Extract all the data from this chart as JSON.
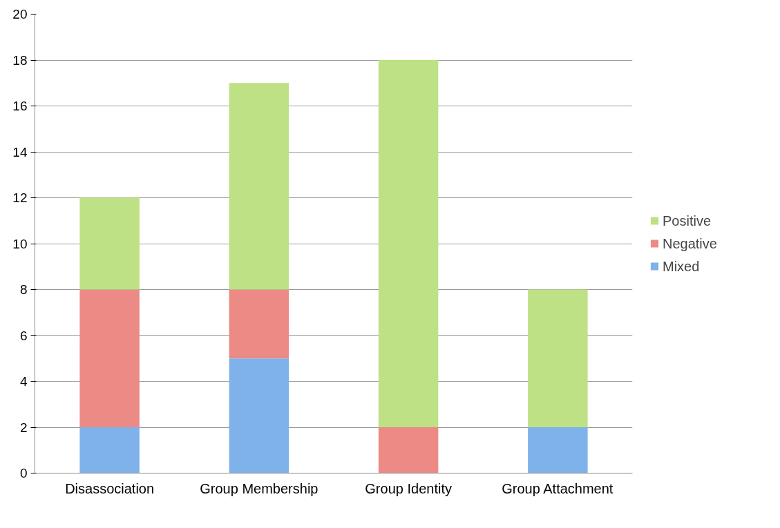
{
  "chart_data": {
    "type": "bar",
    "stacked": true,
    "categories": [
      "Disassociation",
      "Group Membership",
      "Group Identity",
      "Group Attachment"
    ],
    "series": [
      {
        "name": "Mixed",
        "color": "#7fb2ea",
        "values": [
          2,
          5,
          0,
          2
        ]
      },
      {
        "name": "Negative",
        "color": "#ec8a86",
        "values": [
          6,
          3,
          2,
          0
        ]
      },
      {
        "name": "Positive",
        "color": "#bde184",
        "values": [
          4,
          9,
          16,
          6
        ]
      }
    ],
    "ylim": [
      0,
      20
    ],
    "yticks": [
      0,
      2,
      4,
      6,
      8,
      10,
      12,
      14,
      16,
      18,
      20
    ],
    "grid": "y",
    "legend": "right"
  }
}
